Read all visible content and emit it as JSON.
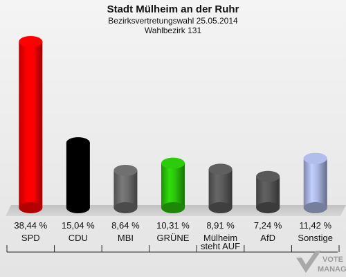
{
  "chart_data": {
    "type": "bar",
    "title": "Stadt Mülheim an der Ruhr",
    "subtitle_lines": [
      "Bezirksvertretungswahl 25.05.2014",
      "Wahlbezirk 131"
    ],
    "categories": [
      "SPD",
      "CDU",
      "MBI",
      "GRÜNE",
      "Mülheim steht AUF",
      "AfD",
      "Sonstige"
    ],
    "category_label_lines": [
      [
        "SPD"
      ],
      [
        "CDU"
      ],
      [
        "MBI"
      ],
      [
        "GRÜNE"
      ],
      [
        "Mülheim",
        "steht AUF"
      ],
      [
        "AfD"
      ],
      [
        "Sonstige"
      ]
    ],
    "values": [
      38.44,
      15.04,
      8.64,
      10.31,
      8.91,
      7.24,
      11.42
    ],
    "value_labels": [
      "38,44 %",
      "15,04 %",
      "8,64 %",
      "10,31 %",
      "8,91 %",
      "7,24 %",
      "11,42 %"
    ],
    "colors": [
      "#ff0000",
      "#000000",
      "#6b6b6b",
      "#2ac10a",
      "#5a5a5a",
      "#555555",
      "#a9b4e0"
    ],
    "unit": "%"
  },
  "watermark": {
    "text_line1": "VOTE",
    "text_line2": "MANAGER"
  }
}
